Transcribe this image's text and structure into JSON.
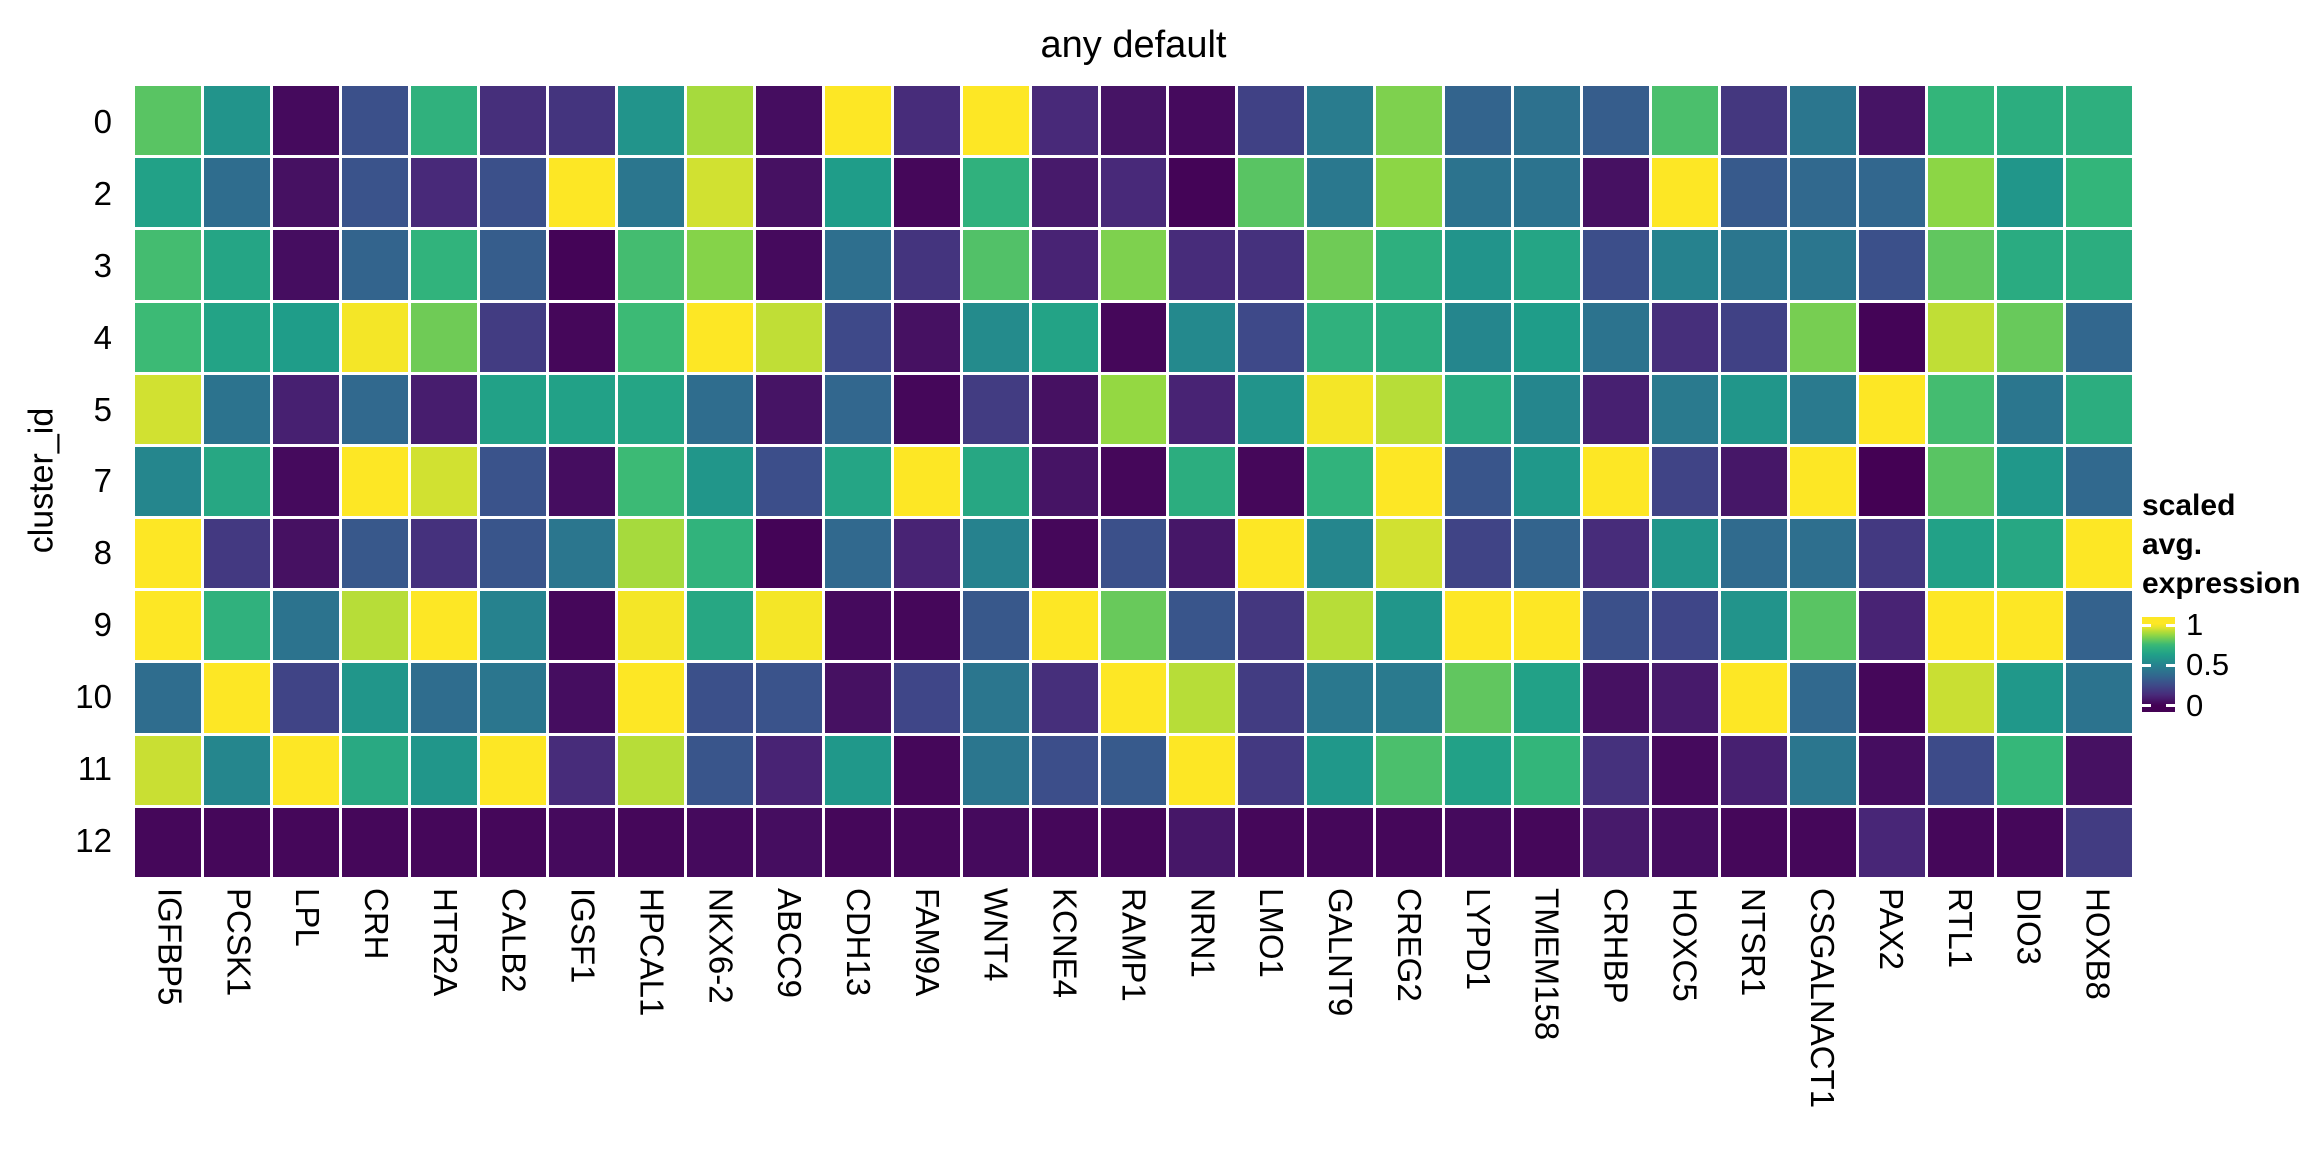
{
  "chart": {
    "title": "any default"
  },
  "axes": {
    "y_title": "cluster_id"
  },
  "legend": {
    "title_line1": "scaled avg.",
    "title_line2": "expression",
    "ticks": [
      {
        "label": "1",
        "pos": 0.085
      },
      {
        "label": "0.5",
        "pos": 0.508
      },
      {
        "label": "0",
        "pos": 0.932
      }
    ]
  },
  "colors": {
    "background": "#ffffff",
    "text": "#000000",
    "cell_gap": "#ffffff",
    "viridis_stops": [
      [
        0.0,
        "#440154"
      ],
      [
        0.125,
        "#482878"
      ],
      [
        0.25,
        "#3e4989"
      ],
      [
        0.375,
        "#31688e"
      ],
      [
        0.5,
        "#26828e"
      ],
      [
        0.625,
        "#1f9e89"
      ],
      [
        0.75,
        "#35b779"
      ],
      [
        0.875,
        "#90d743"
      ],
      [
        1.0,
        "#fde725"
      ]
    ]
  },
  "chart_data": {
    "type": "heatmap",
    "title": "any default",
    "xlabel": "",
    "ylabel": "cluster_id",
    "colorscale": "viridis",
    "legend_title": "scaled avg. expression",
    "value_range": [
      0,
      1
    ],
    "categories_x": [
      "IGFBP5",
      "PCSK1",
      "LPL",
      "CRH",
      "HTR2A",
      "CALB2",
      "IGSF1",
      "HPCAL1",
      "NKX6-2",
      "ABCC9",
      "CDH13",
      "FAM9A",
      "WNT4",
      "KCNE4",
      "RAMP1",
      "NRN1",
      "LMO1",
      "GALNT9",
      "CREG2",
      "LYPD1",
      "TMEM158",
      "CRHBP",
      "HOXC5",
      "NTSR1",
      "CSGALNACT1",
      "PAX2",
      "RTL1",
      "DIO3",
      "HOXB8"
    ],
    "categories_y": [
      "0",
      "2",
      "3",
      "4",
      "5",
      "7",
      "8",
      "9",
      "10",
      "11",
      "12"
    ],
    "values": [
      [
        0.8,
        0.58,
        0.03,
        0.28,
        0.72,
        0.15,
        0.17,
        0.58,
        0.9,
        0.04,
        1.0,
        0.14,
        1.0,
        0.13,
        0.06,
        0.03,
        0.22,
        0.47,
        0.85,
        0.36,
        0.42,
        0.33,
        0.78,
        0.18,
        0.44,
        0.06,
        0.74,
        0.7,
        0.71
      ],
      [
        0.64,
        0.4,
        0.05,
        0.29,
        0.13,
        0.28,
        1.0,
        0.44,
        0.95,
        0.05,
        0.62,
        0.02,
        0.72,
        0.08,
        0.13,
        0.01,
        0.8,
        0.45,
        0.87,
        0.43,
        0.43,
        0.05,
        1.0,
        0.32,
        0.38,
        0.37,
        0.87,
        0.59,
        0.74
      ],
      [
        0.77,
        0.66,
        0.04,
        0.36,
        0.73,
        0.33,
        0.01,
        0.77,
        0.86,
        0.03,
        0.41,
        0.17,
        0.79,
        0.11,
        0.85,
        0.14,
        0.16,
        0.83,
        0.71,
        0.58,
        0.66,
        0.27,
        0.5,
        0.44,
        0.44,
        0.28,
        0.81,
        0.69,
        0.7
      ],
      [
        0.76,
        0.65,
        0.62,
        0.99,
        0.83,
        0.2,
        0.02,
        0.76,
        1.0,
        0.93,
        0.25,
        0.05,
        0.54,
        0.65,
        0.02,
        0.53,
        0.25,
        0.72,
        0.7,
        0.52,
        0.62,
        0.43,
        0.15,
        0.22,
        0.84,
        0.01,
        0.93,
        0.82,
        0.37
      ],
      [
        0.95,
        0.43,
        0.1,
        0.38,
        0.09,
        0.64,
        0.64,
        0.66,
        0.4,
        0.06,
        0.37,
        0.02,
        0.2,
        0.05,
        0.88,
        0.11,
        0.58,
        0.99,
        0.92,
        0.69,
        0.52,
        0.1,
        0.46,
        0.59,
        0.46,
        1.0,
        0.77,
        0.44,
        0.7
      ],
      [
        0.52,
        0.67,
        0.03,
        1.0,
        0.95,
        0.29,
        0.04,
        0.76,
        0.59,
        0.27,
        0.66,
        1.0,
        0.67,
        0.06,
        0.02,
        0.7,
        0.02,
        0.73,
        1.0,
        0.3,
        0.6,
        1.0,
        0.23,
        0.07,
        1.0,
        0.0,
        0.8,
        0.6,
        0.38
      ],
      [
        1.0,
        0.19,
        0.05,
        0.31,
        0.16,
        0.3,
        0.44,
        0.9,
        0.73,
        0.01,
        0.38,
        0.11,
        0.5,
        0.02,
        0.28,
        0.07,
        1.0,
        0.52,
        0.95,
        0.23,
        0.36,
        0.14,
        0.59,
        0.39,
        0.41,
        0.19,
        0.64,
        0.67,
        1.0
      ],
      [
        1.0,
        0.72,
        0.43,
        0.92,
        1.0,
        0.5,
        0.02,
        0.99,
        0.67,
        0.99,
        0.03,
        0.02,
        0.31,
        1.0,
        0.82,
        0.3,
        0.18,
        0.92,
        0.59,
        1.0,
        1.0,
        0.28,
        0.24,
        0.58,
        0.8,
        0.11,
        1.0,
        1.0,
        0.35
      ],
      [
        0.4,
        1.0,
        0.23,
        0.59,
        0.4,
        0.44,
        0.04,
        1.0,
        0.28,
        0.29,
        0.05,
        0.24,
        0.44,
        0.15,
        1.0,
        0.92,
        0.2,
        0.45,
        0.46,
        0.81,
        0.64,
        0.05,
        0.08,
        1.0,
        0.38,
        0.02,
        0.94,
        0.6,
        0.43
      ],
      [
        0.94,
        0.52,
        1.0,
        0.68,
        0.59,
        1.0,
        0.14,
        0.92,
        0.3,
        0.11,
        0.6,
        0.02,
        0.44,
        0.27,
        0.32,
        1.0,
        0.19,
        0.6,
        0.78,
        0.64,
        0.74,
        0.16,
        0.03,
        0.1,
        0.44,
        0.04,
        0.26,
        0.75,
        0.05
      ],
      [
        0.02,
        0.02,
        0.02,
        0.02,
        0.02,
        0.02,
        0.03,
        0.02,
        0.03,
        0.04,
        0.02,
        0.02,
        0.03,
        0.02,
        0.02,
        0.07,
        0.02,
        0.02,
        0.02,
        0.03,
        0.02,
        0.08,
        0.04,
        0.02,
        0.02,
        0.12,
        0.02,
        0.02,
        0.2
      ]
    ]
  }
}
